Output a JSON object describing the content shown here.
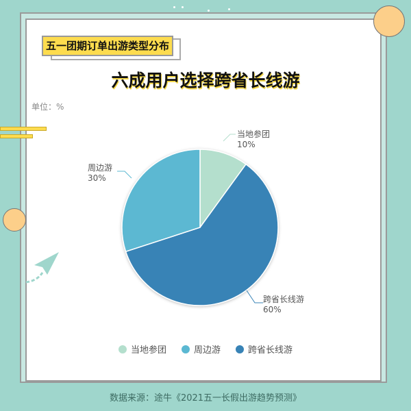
{
  "header_tag": "五一团期订单出游类型分布",
  "chart_data": {
    "type": "pie",
    "title": "六成用户选择跨省长线游",
    "unit_label": "单位：%",
    "slices": [
      {
        "name": "当地参团",
        "value": 10,
        "label": "10%",
        "color": "#b4dfcd"
      },
      {
        "name": "跨省长线游",
        "value": 60,
        "label": "60%",
        "color": "#3883b6"
      },
      {
        "name": "周边游",
        "value": 30,
        "label": "30%",
        "color": "#5bb8d2"
      }
    ],
    "legend": [
      "当地参团",
      "周边游",
      "跨省长线游"
    ],
    "legend_position": "bottom"
  },
  "source": "数据来源：途牛《2021五一长假出游趋势预测》"
}
